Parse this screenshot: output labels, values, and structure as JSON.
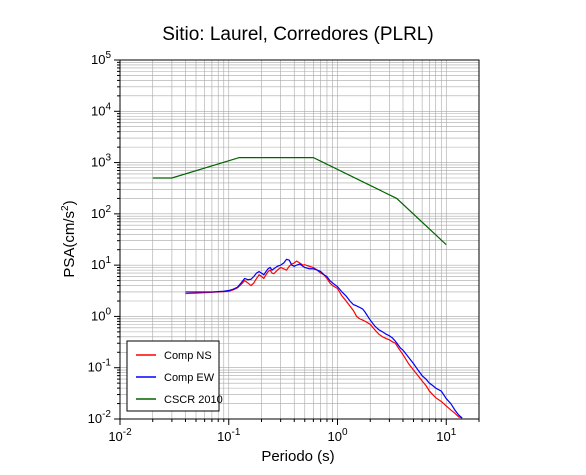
{
  "chart_data": {
    "type": "line",
    "title": "Sitio: Laurel, Corredores (PLRL)",
    "xlabel": "Periodo (s)",
    "ylabel_main": "PSA(cm/s",
    "ylabel_sup": "2",
    "ylabel_close": ")",
    "x_scale": "log",
    "y_scale": "log",
    "xlim": [
      0.01,
      20
    ],
    "ylim": [
      0.01,
      100000
    ],
    "grid": true,
    "legend_placement": "bottom-left",
    "x_ticks": [
      {
        "value": 0.01,
        "base": "10",
        "exp": "-2"
      },
      {
        "value": 0.1,
        "base": "10",
        "exp": "-1"
      },
      {
        "value": 1,
        "base": "10",
        "exp": "0"
      },
      {
        "value": 10,
        "base": "10",
        "exp": "1"
      }
    ],
    "y_ticks": [
      {
        "value": 0.01,
        "base": "10",
        "exp": "-2"
      },
      {
        "value": 0.1,
        "base": "10",
        "exp": "-1"
      },
      {
        "value": 1,
        "base": "10",
        "exp": "0"
      },
      {
        "value": 10,
        "base": "10",
        "exp": "1"
      },
      {
        "value": 100,
        "base": "10",
        "exp": "2"
      },
      {
        "value": 1000,
        "base": "10",
        "exp": "3"
      },
      {
        "value": 10000,
        "base": "10",
        "exp": "4"
      },
      {
        "value": 100000,
        "base": "10",
        "exp": "5"
      }
    ],
    "series": [
      {
        "name": "Comp NS",
        "color": "#ff0000",
        "points": [
          [
            0.04,
            2.8
          ],
          [
            0.05,
            2.85
          ],
          [
            0.06,
            2.9
          ],
          [
            0.07,
            2.95
          ],
          [
            0.08,
            3.0
          ],
          [
            0.09,
            3.05
          ],
          [
            0.1,
            3.1
          ],
          [
            0.11,
            3.3
          ],
          [
            0.12,
            3.6
          ],
          [
            0.13,
            4.2
          ],
          [
            0.14,
            5.0
          ],
          [
            0.15,
            4.5
          ],
          [
            0.16,
            4.0
          ],
          [
            0.17,
            4.5
          ],
          [
            0.18,
            5.5
          ],
          [
            0.19,
            6.5
          ],
          [
            0.2,
            6.0
          ],
          [
            0.21,
            5.5
          ],
          [
            0.22,
            6.5
          ],
          [
            0.23,
            7.5
          ],
          [
            0.24,
            8.0
          ],
          [
            0.25,
            7.0
          ],
          [
            0.26,
            6.8
          ],
          [
            0.28,
            8.0
          ],
          [
            0.3,
            9.0
          ],
          [
            0.32,
            8.5
          ],
          [
            0.34,
            8.0
          ],
          [
            0.36,
            9.5
          ],
          [
            0.38,
            10.5
          ],
          [
            0.4,
            11.0
          ],
          [
            0.42,
            12.0
          ],
          [
            0.45,
            11.0
          ],
          [
            0.48,
            10.0
          ],
          [
            0.5,
            10.2
          ],
          [
            0.55,
            9.5
          ],
          [
            0.6,
            9.0
          ],
          [
            0.65,
            8.0
          ],
          [
            0.7,
            7.0
          ],
          [
            0.75,
            6.5
          ],
          [
            0.8,
            5.5
          ],
          [
            0.85,
            4.5
          ],
          [
            0.9,
            4.0
          ],
          [
            1.0,
            3.5
          ],
          [
            1.1,
            2.5
          ],
          [
            1.2,
            2.0
          ],
          [
            1.3,
            1.6
          ],
          [
            1.4,
            1.3
          ],
          [
            1.5,
            1.0
          ],
          [
            1.6,
            0.9
          ],
          [
            1.7,
            0.85
          ],
          [
            1.8,
            0.8
          ],
          [
            1.9,
            0.75
          ],
          [
            2.0,
            0.7
          ],
          [
            2.2,
            0.55
          ],
          [
            2.4,
            0.45
          ],
          [
            2.6,
            0.4
          ],
          [
            2.8,
            0.37
          ],
          [
            3.0,
            0.35
          ],
          [
            3.2,
            0.32
          ],
          [
            3.4,
            0.3
          ],
          [
            3.6,
            0.25
          ],
          [
            3.8,
            0.21
          ],
          [
            4.0,
            0.18
          ],
          [
            4.5,
            0.12
          ],
          [
            5.0,
            0.09
          ],
          [
            5.5,
            0.07
          ],
          [
            6.0,
            0.055
          ],
          [
            6.5,
            0.045
          ],
          [
            7.0,
            0.035
          ],
          [
            7.5,
            0.03
          ],
          [
            8.0,
            0.026
          ],
          [
            9.0,
            0.022
          ],
          [
            10.0,
            0.018
          ],
          [
            11.0,
            0.015
          ],
          [
            12.0,
            0.013
          ],
          [
            13.0,
            0.011
          ],
          [
            14.0,
            0.0105
          ]
        ]
      },
      {
        "name": "Comp EW",
        "color": "#0000ff",
        "points": [
          [
            0.04,
            3.0
          ],
          [
            0.05,
            3.0
          ],
          [
            0.06,
            3.0
          ],
          [
            0.07,
            3.0
          ],
          [
            0.08,
            3.05
          ],
          [
            0.09,
            3.1
          ],
          [
            0.1,
            3.2
          ],
          [
            0.11,
            3.4
          ],
          [
            0.12,
            3.7
          ],
          [
            0.13,
            4.5
          ],
          [
            0.14,
            5.5
          ],
          [
            0.15,
            5.2
          ],
          [
            0.16,
            5.3
          ],
          [
            0.17,
            6.0
          ],
          [
            0.18,
            7.0
          ],
          [
            0.19,
            7.5
          ],
          [
            0.2,
            7.0
          ],
          [
            0.21,
            6.5
          ],
          [
            0.22,
            7.5
          ],
          [
            0.23,
            8.5
          ],
          [
            0.24,
            9.0
          ],
          [
            0.25,
            8.0
          ],
          [
            0.26,
            8.5
          ],
          [
            0.28,
            9.5
          ],
          [
            0.3,
            10.0
          ],
          [
            0.32,
            11.0
          ],
          [
            0.34,
            13.0
          ],
          [
            0.36,
            12.5
          ],
          [
            0.38,
            10.0
          ],
          [
            0.4,
            9.5
          ],
          [
            0.42,
            10.0
          ],
          [
            0.45,
            10.5
          ],
          [
            0.48,
            9.5
          ],
          [
            0.5,
            9.0
          ],
          [
            0.55,
            8.5
          ],
          [
            0.6,
            8.5
          ],
          [
            0.65,
            8.0
          ],
          [
            0.7,
            7.5
          ],
          [
            0.75,
            6.5
          ],
          [
            0.8,
            6.0
          ],
          [
            0.85,
            5.0
          ],
          [
            0.9,
            4.5
          ],
          [
            1.0,
            3.8
          ],
          [
            1.1,
            3.0
          ],
          [
            1.2,
            2.5
          ],
          [
            1.3,
            2.0
          ],
          [
            1.4,
            1.7
          ],
          [
            1.5,
            1.6
          ],
          [
            1.6,
            1.5
          ],
          [
            1.7,
            1.4
          ],
          [
            1.8,
            1.2
          ],
          [
            1.9,
            1.0
          ],
          [
            2.0,
            0.85
          ],
          [
            2.2,
            0.65
          ],
          [
            2.4,
            0.55
          ],
          [
            2.6,
            0.5
          ],
          [
            2.8,
            0.45
          ],
          [
            3.0,
            0.42
          ],
          [
            3.2,
            0.38
          ],
          [
            3.4,
            0.33
          ],
          [
            3.6,
            0.28
          ],
          [
            3.8,
            0.24
          ],
          [
            4.0,
            0.22
          ],
          [
            4.5,
            0.16
          ],
          [
            5.0,
            0.12
          ],
          [
            5.5,
            0.09
          ],
          [
            6.0,
            0.07
          ],
          [
            6.5,
            0.06
          ],
          [
            7.0,
            0.05
          ],
          [
            7.5,
            0.045
          ],
          [
            8.0,
            0.04
          ],
          [
            9.0,
            0.035
          ],
          [
            10.0,
            0.025
          ],
          [
            11.0,
            0.02
          ],
          [
            12.0,
            0.015
          ],
          [
            13.0,
            0.012
          ],
          [
            14.0,
            0.0105
          ]
        ]
      },
      {
        "name": "CSCR 2010",
        "color": "#006400",
        "points": [
          [
            0.02,
            500
          ],
          [
            0.03,
            500
          ],
          [
            0.125,
            1250
          ],
          [
            0.6,
            1250
          ],
          [
            3.5,
            200
          ],
          [
            10.0,
            25
          ]
        ]
      }
    ]
  }
}
